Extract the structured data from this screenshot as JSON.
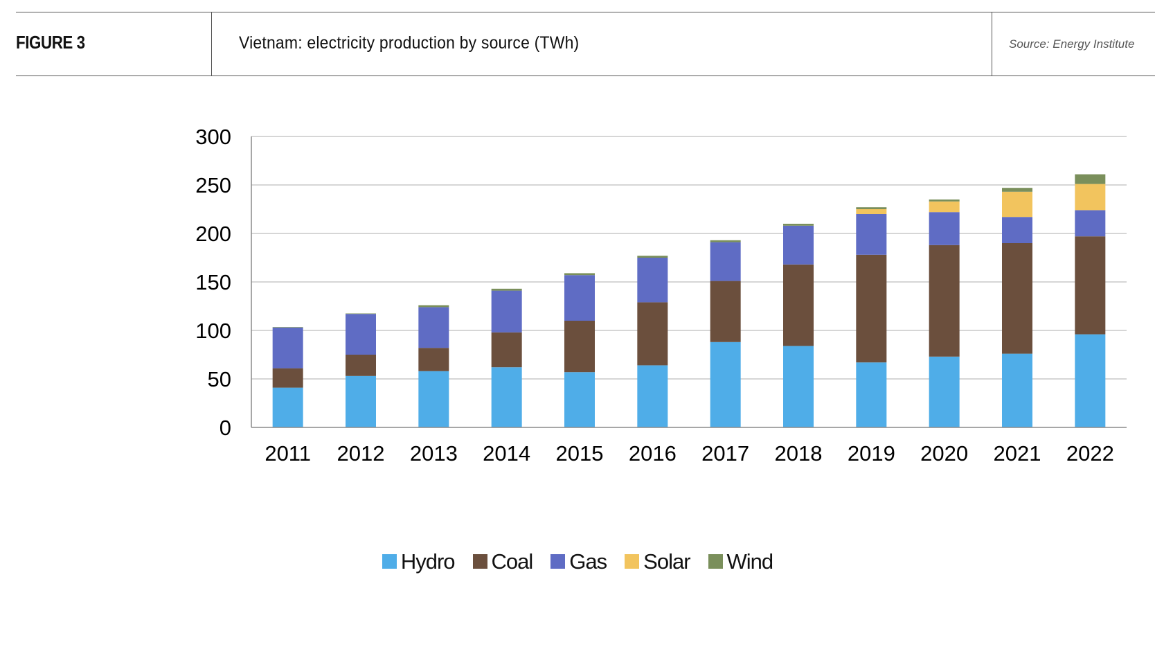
{
  "header": {
    "figure_label": "FIGURE 3",
    "title": "Vietnam: electricity production by source (TWh)",
    "source": "Source: Energy Institute"
  },
  "chart_data": {
    "type": "bar",
    "stacked": true,
    "title": "Vietnam: electricity production by source (TWh)",
    "xlabel": "",
    "ylabel": "",
    "ylim": [
      0,
      300
    ],
    "yticks": [
      0,
      50,
      100,
      150,
      200,
      250,
      300
    ],
    "grid": true,
    "legend_position": "bottom",
    "categories": [
      "2011",
      "2012",
      "2013",
      "2014",
      "2015",
      "2016",
      "2017",
      "2018",
      "2019",
      "2020",
      "2021",
      "2022"
    ],
    "series": [
      {
        "name": "Hydro",
        "color": "#4FADE8",
        "values": [
          41,
          53,
          58,
          62,
          57,
          64,
          88,
          84,
          67,
          73,
          76,
          96
        ]
      },
      {
        "name": "Coal",
        "color": "#6B4F3D",
        "values": [
          20,
          22,
          24,
          36,
          53,
          65,
          63,
          84,
          111,
          115,
          114,
          101
        ]
      },
      {
        "name": "Gas",
        "color": "#5F6CC4",
        "values": [
          42,
          42,
          42,
          43,
          47,
          46,
          40,
          40,
          42,
          34,
          27,
          27
        ]
      },
      {
        "name": "Solar",
        "color": "#F2C45E",
        "values": [
          0,
          0,
          0,
          0,
          0,
          0,
          0,
          0,
          5,
          11,
          26,
          27
        ]
      },
      {
        "name": "Wind",
        "color": "#7A8F5B",
        "values": [
          0.5,
          0.5,
          2,
          2,
          2,
          2,
          2,
          2,
          2,
          2,
          4,
          10
        ]
      }
    ]
  }
}
